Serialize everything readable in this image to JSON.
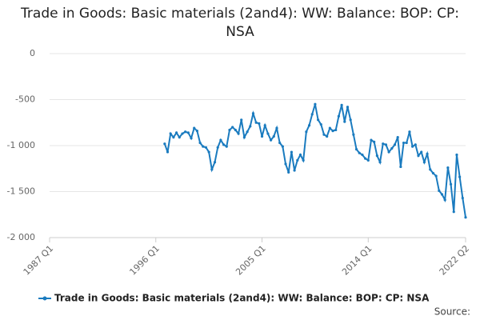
{
  "chart_data": {
    "type": "line",
    "title": "Trade in Goods: Basic materials (2and4): WW: Balance: BOP: CP: NSA",
    "source": "Source:",
    "x": [
      1996.75,
      1997,
      1997.25,
      1997.5,
      1997.75,
      1998,
      1998.25,
      1998.5,
      1998.75,
      1999,
      1999.25,
      1999.5,
      1999.75,
      2000,
      2000.25,
      2000.5,
      2000.75,
      2001,
      2001.25,
      2001.5,
      2001.75,
      2002,
      2002.25,
      2002.5,
      2002.75,
      2003,
      2003.25,
      2003.5,
      2003.75,
      2004,
      2004.25,
      2004.5,
      2004.75,
      2005,
      2005.25,
      2005.5,
      2005.75,
      2006,
      2006.25,
      2006.5,
      2006.75,
      2007,
      2007.25,
      2007.5,
      2007.75,
      2008,
      2008.25,
      2008.5,
      2008.75,
      2009,
      2009.25,
      2009.5,
      2009.75,
      2010,
      2010.25,
      2010.5,
      2010.75,
      2011,
      2011.25,
      2011.5,
      2011.75,
      2012,
      2012.25,
      2012.5,
      2012.75,
      2013,
      2013.25,
      2013.5,
      2013.75,
      2014,
      2014.25,
      2014.5,
      2014.75,
      2015,
      2015.25,
      2015.5,
      2015.75,
      2016,
      2016.25,
      2016.5,
      2016.75,
      2017,
      2017.25,
      2017.5,
      2017.75,
      2018,
      2018.25,
      2018.5,
      2018.75,
      2019,
      2019.25,
      2019.5,
      2019.75,
      2020,
      2020.25,
      2020.5,
      2020.75,
      2021,
      2021.25,
      2021.5,
      2021.75,
      2022,
      2022.25
    ],
    "series": [
      {
        "name": "Trade in Goods: Basic materials (2and4): WW: Balance: BOP: CP: NSA",
        "color": "#1a7bbf",
        "values": [
          -980,
          -1070,
          -870,
          -910,
          -860,
          -910,
          -870,
          -850,
          -860,
          -920,
          -810,
          -840,
          -970,
          -1010,
          -1020,
          -1070,
          -1260,
          -1180,
          -1020,
          -940,
          -990,
          -1010,
          -830,
          -800,
          -830,
          -870,
          -720,
          -910,
          -850,
          -790,
          -650,
          -750,
          -760,
          -900,
          -780,
          -870,
          -940,
          -900,
          -810,
          -970,
          -1010,
          -1200,
          -1290,
          -1070,
          -1270,
          -1160,
          -1100,
          -1160,
          -850,
          -780,
          -660,
          -550,
          -720,
          -770,
          -880,
          -900,
          -810,
          -840,
          -830,
          -680,
          -560,
          -740,
          -580,
          -720,
          -880,
          -1040,
          -1080,
          -1100,
          -1140,
          -1160,
          -940,
          -960,
          -1110,
          -1180,
          -980,
          -990,
          -1070,
          -1030,
          -990,
          -910,
          -1230,
          -970,
          -970,
          -850,
          -1010,
          -990,
          -1110,
          -1070,
          -1180,
          -1090,
          -1260,
          -1300,
          -1330,
          -1490,
          -1530,
          -1590,
          -1240,
          -1420,
          -1720,
          -1100,
          -1340,
          -1570,
          -1780
        ]
      }
    ],
    "xlim": [
      1987,
      2022.25
    ],
    "xticks": [
      {
        "value": 1987,
        "label": "1987 Q1"
      },
      {
        "value": 1996,
        "label": "1996 Q1"
      },
      {
        "value": 2005,
        "label": "2005 Q1"
      },
      {
        "value": 2014,
        "label": "2014 Q1"
      },
      {
        "value": 2022.25,
        "label": "2022 Q2"
      }
    ],
    "ylim": [
      -2000,
      0
    ],
    "yticks": [
      0,
      -500,
      {
        "value": -1000,
        "label": "-1 000"
      },
      {
        "value": -1500,
        "label": "-1 500"
      },
      {
        "value": -2000,
        "label": "-2 000"
      }
    ],
    "grid": true,
    "legend": "bottom"
  }
}
